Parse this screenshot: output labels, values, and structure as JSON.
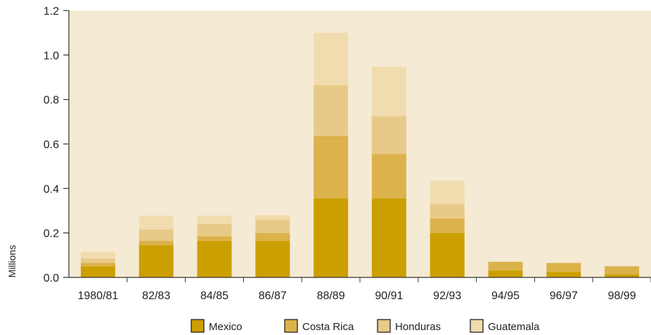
{
  "chart_data": {
    "type": "bar",
    "stacked": true,
    "title": "",
    "xlabel": "",
    "ylabel": "Millions",
    "ylim": [
      0,
      1.2
    ],
    "yticks": [
      "0.0",
      "0.2",
      "0.4",
      "0.6",
      "0.8",
      "1.0",
      "1.2"
    ],
    "categories": [
      "1980/81",
      "82/83",
      "84/85",
      "86/87",
      "88/89",
      "90/91",
      "92/93",
      "94/95",
      "96/97",
      "98/99"
    ],
    "series": [
      {
        "name": "Mexico",
        "color": "#cc9f00",
        "values": [
          0.05,
          0.145,
          0.165,
          0.165,
          0.355,
          0.355,
          0.2,
          0.03,
          0.025,
          0.015
        ]
      },
      {
        "name": "Costa Rica",
        "color": "#dcb24a",
        "values": [
          0.015,
          0.02,
          0.02,
          0.035,
          0.28,
          0.2,
          0.065,
          0.04,
          0.04,
          0.035
        ]
      },
      {
        "name": "Honduras",
        "color": "#e8ca88",
        "values": [
          0.02,
          0.05,
          0.055,
          0.06,
          0.23,
          0.17,
          0.065,
          0,
          0,
          0
        ]
      },
      {
        "name": "Guatemala",
        "color": "#f0dcae",
        "values": [
          0.03,
          0.063,
          0.038,
          0.02,
          0.235,
          0.222,
          0.105,
          0,
          0,
          0
        ]
      }
    ],
    "plot_background": "#f5ead3",
    "legend_position": "bottom",
    "grid": false
  }
}
